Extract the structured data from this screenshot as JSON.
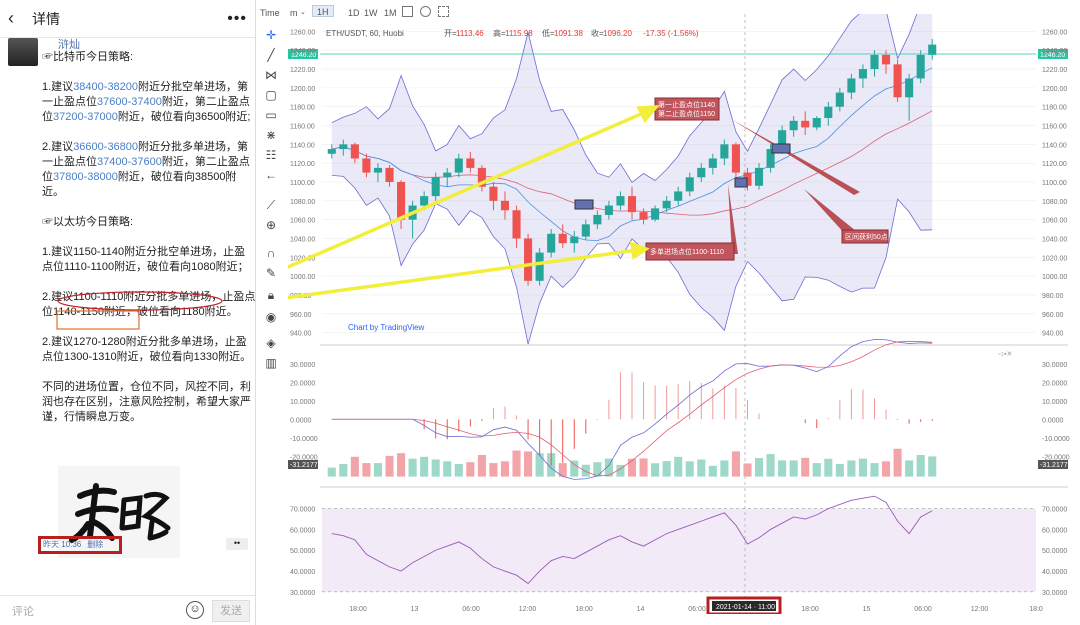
{
  "left_panel": {
    "header": {
      "back_icon": "‹",
      "title": "详情",
      "more_icon": "•••"
    },
    "post": {
      "username": "浒灿",
      "intro": "☞比特币今日策略:",
      "btc1_a": "1.建议",
      "btc1_range": "38400-38200",
      "btc1_b": "附近分批空单进场，第一止盈点位",
      "btc1_tp1": "37600-37400",
      "btc1_c": "附近，第二止盈点位",
      "btc1_tp2": "37200-37000",
      "btc1_d": "附近，破位看向36500附近;",
      "btc2_a": "2.建议",
      "btc2_range": "36600-36800",
      "btc2_b": "附近分批多单进场，第一止盈点位",
      "btc2_tp1": "37400-37600",
      "btc2_c": "附近，第二止盈点位",
      "btc2_tp2": "37800-38000",
      "btc2_d": "附近，破位看向38500附近。",
      "eth_intro": "☞以太坊今日策略:",
      "eth1": "1.建议1150-1140附近分批空单进场，止盈点位1110-1100附近，破位看向1080附近；",
      "eth2": "2.建议1100-1110附近分批多单进场，止盈点位1140-1150附近，破位看向1180附近。",
      "eth3": "2.建议1270-1280附近分批多单进场，止盈点位1300-1310附近，破位看向1330附近。",
      "closing": "不同的进场位置，仓位不同，风控不同，利润也存在区别，注意风险控制，希望大家严谨，行情瞬息万变。",
      "time": "昨天 10:36",
      "delete": "删除"
    },
    "comment": {
      "placeholder": "评论",
      "send": "发送"
    }
  },
  "toolbar": {
    "time": "Time",
    "m": "m",
    "interval": "1H",
    "d": "1D",
    "w": "1W",
    "mo": "1M"
  },
  "chart_info": {
    "symbol": "ETH/USDT, 60, Huobi",
    "o_label": "开=",
    "o": "1113.46",
    "h_label": "高=",
    "h": "1115.98",
    "l_label": "低=",
    "l": "1091.38",
    "c_label": "收=",
    "c": "1096.20",
    "chg": "-17.35 (-1.56%)",
    "price_tag": "1246.20",
    "watermark": "Chart by TradingView",
    "macd_value": "-31.2177",
    "time_badge": "2021-01-14 · 11:00",
    "ann1": "第一止盈点位1140",
    "ann2": "第二止盈点位1150",
    "ann3": "多单进场点位1100-1110",
    "ann4": "区间获利50点"
  },
  "colors": {
    "up": "#26a69a",
    "down": "#ef5350",
    "band": "#6b6bd6",
    "accent_red": "#b82020"
  },
  "chart_data": {
    "type": "candlestick",
    "price_axis": {
      "ticks": [
        940,
        960,
        980,
        1000,
        1020,
        1040,
        1060,
        1080,
        1100,
        1120,
        1140,
        1160,
        1180,
        1200,
        1220,
        1240,
        1260
      ],
      "range": [
        930,
        1270
      ]
    },
    "x_ticks": [
      "18:00",
      "13",
      "06:00",
      "12:00",
      "18:00",
      "14",
      "06:00",
      "12:00",
      "18:00",
      "15",
      "06:00",
      "12:00",
      "18:0"
    ],
    "ohlc": [
      [
        1130,
        1140,
        1125,
        1135
      ],
      [
        1135,
        1145,
        1128,
        1140
      ],
      [
        1140,
        1142,
        1120,
        1125
      ],
      [
        1125,
        1130,
        1105,
        1110
      ],
      [
        1110,
        1120,
        1100,
        1115
      ],
      [
        1115,
        1118,
        1095,
        1100
      ],
      [
        1100,
        1102,
        1050,
        1060
      ],
      [
        1060,
        1080,
        1040,
        1075
      ],
      [
        1075,
        1090,
        1070,
        1085
      ],
      [
        1085,
        1110,
        1080,
        1105
      ],
      [
        1105,
        1115,
        1095,
        1110
      ],
      [
        1110,
        1130,
        1105,
        1125
      ],
      [
        1125,
        1132,
        1110,
        1115
      ],
      [
        1115,
        1118,
        1090,
        1095
      ],
      [
        1095,
        1100,
        1070,
        1080
      ],
      [
        1080,
        1090,
        1060,
        1070
      ],
      [
        1070,
        1075,
        1030,
        1040
      ],
      [
        1040,
        1045,
        990,
        995
      ],
      [
        995,
        1030,
        990,
        1025
      ],
      [
        1025,
        1050,
        1020,
        1045
      ],
      [
        1045,
        1055,
        1030,
        1035
      ],
      [
        1035,
        1048,
        1025,
        1042
      ],
      [
        1042,
        1060,
        1038,
        1055
      ],
      [
        1055,
        1070,
        1050,
        1065
      ],
      [
        1065,
        1080,
        1060,
        1075
      ],
      [
        1075,
        1090,
        1070,
        1085
      ],
      [
        1085,
        1095,
        1060,
        1068
      ],
      [
        1068,
        1072,
        1055,
        1060
      ],
      [
        1060,
        1075,
        1058,
        1072
      ],
      [
        1072,
        1085,
        1068,
        1080
      ],
      [
        1080,
        1095,
        1075,
        1090
      ],
      [
        1090,
        1110,
        1085,
        1105
      ],
      [
        1105,
        1120,
        1100,
        1115
      ],
      [
        1115,
        1130,
        1108,
        1125
      ],
      [
        1125,
        1145,
        1118,
        1140
      ],
      [
        1140,
        1142,
        1105,
        1110
      ],
      [
        1110,
        1115,
        1091,
        1096
      ],
      [
        1096,
        1120,
        1092,
        1115
      ],
      [
        1115,
        1140,
        1110,
        1135
      ],
      [
        1135,
        1160,
        1130,
        1155
      ],
      [
        1155,
        1170,
        1148,
        1165
      ],
      [
        1165,
        1175,
        1150,
        1158
      ],
      [
        1158,
        1170,
        1155,
        1168
      ],
      [
        1168,
        1185,
        1160,
        1180
      ],
      [
        1180,
        1200,
        1175,
        1195
      ],
      [
        1195,
        1215,
        1188,
        1210
      ],
      [
        1210,
        1225,
        1200,
        1220
      ],
      [
        1220,
        1240,
        1212,
        1235
      ],
      [
        1235,
        1240,
        1215,
        1225
      ],
      [
        1225,
        1230,
        1185,
        1190
      ],
      [
        1190,
        1215,
        1165,
        1210
      ],
      [
        1210,
        1240,
        1205,
        1235
      ],
      [
        1235,
        1252,
        1230,
        1246
      ]
    ],
    "macd_axis": {
      "ticks": [
        30,
        20,
        10,
        0,
        -10,
        -20
      ],
      "range": [
        -35,
        38
      ]
    },
    "rsi_axis": {
      "ticks": [
        70,
        60,
        50,
        40,
        30
      ],
      "range": [
        28,
        78
      ]
    },
    "rsi": [
      58,
      57,
      55,
      48,
      45,
      42,
      40,
      44,
      47,
      50,
      52,
      54,
      51,
      46,
      42,
      40,
      38,
      34,
      40,
      45,
      47,
      46,
      49,
      52,
      55,
      57,
      54,
      52,
      55,
      58,
      60,
      62,
      64,
      66,
      68,
      62,
      53,
      56,
      60,
      63,
      66,
      65,
      67,
      70,
      72,
      74,
      75,
      76,
      73,
      64,
      58,
      66,
      69
    ]
  }
}
